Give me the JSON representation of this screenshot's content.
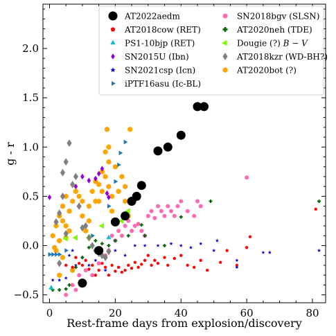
{
  "chart_data": {
    "type": "scatter",
    "xlabel": "Rest-frame days from explosion/discovery",
    "ylabel": "g - r",
    "xlim": [
      -2,
      84
    ],
    "ylim": [
      -0.58,
      2.45
    ],
    "xticks": [
      0,
      20,
      40,
      60,
      80
    ],
    "yticks": [
      -0.5,
      0.0,
      0.5,
      1.0,
      1.5,
      2.0
    ],
    "ytick_labels": [
      "−0.5",
      "0.0",
      "0.5",
      "1.0",
      "1.5",
      "2.0"
    ],
    "grid": false,
    "legend_position": "top-right",
    "series": [
      {
        "name": "AT2020bot (?)",
        "color": "#ffa500",
        "marker": "hexagon",
        "size": 8,
        "points": [
          [
            1,
            0.1
          ],
          [
            1.5,
            -0.02
          ],
          [
            2,
            0.2
          ],
          [
            2,
            -0.05
          ],
          [
            3,
            0.05
          ],
          [
            3,
            0.3
          ],
          [
            4,
            0.4
          ],
          [
            4,
            0.25
          ],
          [
            4,
            -0.12
          ],
          [
            5,
            0.2
          ],
          [
            5,
            0.5
          ],
          [
            5,
            0.08
          ],
          [
            6,
            0.35
          ],
          [
            6,
            0.15
          ],
          [
            7,
            0.45
          ],
          [
            8,
            0.55
          ],
          [
            9,
            0.5
          ],
          [
            10,
            0.3
          ],
          [
            10,
            0.45
          ],
          [
            11,
            0.15
          ],
          [
            12,
            0.4
          ],
          [
            12,
            0.25
          ],
          [
            13,
            0.55
          ],
          [
            14,
            0.45
          ],
          [
            14,
            0.65
          ],
          [
            15,
            0.62
          ],
          [
            15,
            0.45
          ],
          [
            16,
            0.55
          ],
          [
            16,
            0.75
          ],
          [
            17,
            0.7
          ],
          [
            17,
            0.95
          ],
          [
            17.5,
            1.18
          ],
          [
            18,
            1.0
          ],
          [
            18,
            0.85
          ],
          [
            18,
            0.6
          ],
          [
            19,
            0.5
          ],
          [
            19,
            0.35
          ],
          [
            20,
            0.8
          ],
          [
            21,
            0.55
          ],
          [
            22,
            0.7
          ],
          [
            23,
            0.6
          ],
          [
            23,
            0.45
          ],
          [
            24,
            0.3
          ],
          [
            24.5,
            1.18
          ],
          [
            3,
            -0.3
          ],
          [
            7,
            -0.25
          ]
        ]
      },
      {
        "name": "AT2018cow (RET)",
        "color": "#ff0000",
        "marker": "pentagon",
        "size": 5,
        "points": [
          [
            5,
            -0.2
          ],
          [
            7,
            -0.22
          ],
          [
            8,
            -0.12
          ],
          [
            9,
            -0.18
          ],
          [
            10,
            -0.2
          ],
          [
            11,
            -0.15
          ],
          [
            12,
            -0.24
          ],
          [
            13,
            -0.2
          ],
          [
            14,
            -0.3
          ],
          [
            15,
            -0.25
          ],
          [
            16,
            -0.18
          ],
          [
            17,
            -0.22
          ],
          [
            18,
            -0.3
          ],
          [
            19,
            -0.2
          ],
          [
            20,
            -0.26
          ],
          [
            21,
            -0.22
          ],
          [
            22,
            -0.27
          ],
          [
            23,
            -0.25
          ],
          [
            24,
            -0.2
          ],
          [
            25,
            -0.23
          ],
          [
            26,
            -0.17
          ],
          [
            27,
            -0.22
          ],
          [
            28,
            -0.19
          ],
          [
            29,
            -0.15
          ],
          [
            30,
            -0.1
          ],
          [
            31,
            -0.2
          ],
          [
            32,
            -0.15
          ],
          [
            33,
            -0.18
          ],
          [
            35,
            -0.12
          ],
          [
            36,
            -0.2
          ],
          [
            38,
            -0.13
          ],
          [
            40,
            -0.1
          ],
          [
            42,
            -0.2
          ],
          [
            44,
            -0.22
          ],
          [
            46,
            -0.15
          ],
          [
            48,
            -0.25
          ],
          [
            52,
            -0.17
          ],
          [
            54,
            -0.05
          ],
          [
            57,
            -0.2
          ],
          [
            60,
            -0.02
          ],
          [
            61,
            0.09
          ],
          [
            81,
            0.37
          ]
        ]
      },
      {
        "name": "SN2018bgv (SLSN)",
        "color": "#ff69b4",
        "marker": "circle",
        "size": 6,
        "points": [
          [
            5,
            -0.5
          ],
          [
            7,
            -0.4
          ],
          [
            8,
            -0.45
          ],
          [
            9,
            -0.3
          ],
          [
            11,
            -0.25
          ],
          [
            13,
            -0.3
          ],
          [
            15,
            -0.18
          ],
          [
            17,
            -0.1
          ],
          [
            18,
            -0.05
          ],
          [
            19,
            0.1
          ],
          [
            20,
            0.05
          ],
          [
            21,
            0.15
          ],
          [
            22,
            0.1
          ],
          [
            23,
            0.2
          ],
          [
            24,
            0.25
          ],
          [
            25,
            0.15
          ],
          [
            26,
            0.2
          ],
          [
            27,
            0.22
          ],
          [
            28,
            0.15
          ],
          [
            29,
            0.1
          ],
          [
            30,
            0.3
          ],
          [
            31,
            0.35
          ],
          [
            32,
            0.28
          ],
          [
            33,
            0.4
          ],
          [
            34,
            0.35
          ],
          [
            35,
            0.3
          ],
          [
            36,
            0.4
          ],
          [
            37,
            0.35
          ],
          [
            38,
            0.3
          ],
          [
            39,
            0.4
          ],
          [
            40,
            0.45
          ],
          [
            42,
            0.35
          ],
          [
            44,
            0.3
          ],
          [
            45,
            0.45
          ],
          [
            46,
            0.4
          ],
          [
            60,
            0.69
          ]
        ]
      },
      {
        "name": "AT2022aedm",
        "color": "#000000",
        "marker": "circle",
        "size": 13,
        "points": [
          [
            10,
            -0.38
          ],
          [
            15,
            -0.05
          ],
          [
            20,
            0.24
          ],
          [
            23,
            0.3
          ],
          [
            25,
            0.45
          ],
          [
            26.5,
            0.5
          ],
          [
            28,
            0.61
          ],
          [
            33,
            0.96
          ],
          [
            36,
            1.0
          ],
          [
            40,
            1.12
          ],
          [
            45,
            1.41
          ],
          [
            47,
            1.41
          ]
        ]
      },
      {
        "name": "PS1-10bjp (RET)",
        "color": "#17becf",
        "marker": "triangle-up",
        "size": 8,
        "points": [
          [
            0.5,
            -0.43
          ],
          [
            18,
            0.08
          ]
        ]
      },
      {
        "name": "SN2015U (Ibn)",
        "color": "#9400d3",
        "marker": "diamond",
        "size": 7,
        "points": [
          [
            0,
            0.49
          ],
          [
            8,
            0.6
          ],
          [
            10,
            0.7
          ],
          [
            12,
            0.66
          ],
          [
            14,
            0.68
          ],
          [
            15,
            0.73
          ],
          [
            16,
            0.78
          ],
          [
            17.5,
            0.53
          ],
          [
            18,
            0.49
          ]
        ]
      },
      {
        "name": "SN2021csp (Icn)",
        "color": "#0000cd",
        "marker": "star",
        "size": 5,
        "points": [
          [
            1,
            -0.35
          ],
          [
            3,
            -0.35
          ],
          [
            5,
            -0.33
          ],
          [
            6,
            -0.1
          ],
          [
            7,
            -0.05
          ],
          [
            8,
            -0.2
          ],
          [
            10,
            -0.12
          ],
          [
            12,
            -0.2
          ],
          [
            14,
            -0.15
          ],
          [
            17,
            -0.25
          ],
          [
            20,
            -0.05
          ],
          [
            23,
            -0.1
          ],
          [
            26,
            0.0
          ],
          [
            29,
            0.0
          ],
          [
            33,
            0.0
          ],
          [
            37,
            0.02
          ],
          [
            40,
            0.0
          ],
          [
            43,
            -0.02
          ],
          [
            46,
            0.02
          ],
          [
            50,
            -0.05
          ],
          [
            51,
            0.05
          ],
          [
            57,
            -0.15
          ],
          [
            57,
            -0.22
          ],
          [
            65,
            -0.07
          ],
          [
            67,
            -0.07
          ],
          [
            82,
            -0.05
          ]
        ]
      },
      {
        "name": "iPTF16asu (Ic-BL)",
        "color": "#1f77b4",
        "marker": "triangle-right",
        "size": 7,
        "points": [
          [
            0,
            -0.09
          ],
          [
            1,
            -0.09
          ],
          [
            2,
            -0.09
          ],
          [
            3,
            -0.09
          ],
          [
            5,
            -0.05
          ],
          [
            13,
            0.1
          ],
          [
            18,
            0.4
          ],
          [
            20,
            0.65
          ],
          [
            21,
            0.82
          ],
          [
            21.5,
            0.94
          ],
          [
            23,
            1.05
          ]
        ]
      },
      {
        "name": "AT2020neh (TDE)",
        "color": "#006400",
        "marker": "plus",
        "size": 5,
        "points": [
          [
            1,
            -0.45
          ],
          [
            3,
            -0.45
          ],
          [
            5,
            -0.44
          ],
          [
            6,
            -0.4
          ],
          [
            8,
            -0.22
          ],
          [
            10,
            -0.12
          ],
          [
            12,
            -0.02
          ],
          [
            14,
            0.05
          ],
          [
            16,
            0.02
          ],
          [
            18,
            0.0
          ],
          [
            20,
            0.05
          ],
          [
            24,
            0.1
          ],
          [
            28,
            0.21
          ],
          [
            29,
            0.1
          ],
          [
            35,
            0.0
          ],
          [
            40,
            0.29
          ],
          [
            49,
            0.45
          ],
          [
            82,
            0.45
          ]
        ]
      },
      {
        "name": "Dougie (?) B − V",
        "label_main": "Dougie (?)",
        "label_math": "B − V",
        "color": "#7cfc00",
        "marker": "triangle-left",
        "size": 9,
        "points": [
          [
            5,
            0.07
          ],
          [
            8,
            0.08
          ],
          [
            12,
            0.08
          ],
          [
            16,
            0.2
          ],
          [
            22,
            0.25
          ],
          [
            24,
            0.35
          ]
        ]
      },
      {
        "name": "AT2018kzr (WD-BH?)",
        "color": "#808080",
        "marker": "diamond",
        "size": 9,
        "points": [
          [
            2,
            0.24
          ],
          [
            3,
            0.33
          ],
          [
            4,
            0.5
          ],
          [
            5,
            0.85
          ],
          [
            6,
            1.04
          ],
          [
            7,
            0.62
          ],
          [
            8,
            0.7
          ],
          [
            9,
            0.4
          ],
          [
            10,
            0.18
          ],
          [
            11,
            0.2
          ],
          [
            12,
            0.08
          ],
          [
            13,
            0.0
          ],
          [
            14,
            -0.05
          ],
          [
            15,
            -0.08
          ],
          [
            16,
            -0.1
          ],
          [
            17,
            -0.12
          ],
          [
            18,
            -0.06
          ],
          [
            4,
            0.74
          ],
          [
            3,
            -0.18
          ],
          [
            5,
            0.12
          ]
        ]
      }
    ],
    "legend_columns": [
      [
        "AT2022aedm",
        "AT2018cow (RET)",
        "PS1-10bjp (RET)",
        "SN2015U (Ibn)",
        "SN2021csp (Icn)",
        "iPTF16asu (Ic-BL)"
      ],
      [
        "SN2018bgv (SLSN)",
        "AT2020neh (TDE)",
        "Dougie (?) B − V",
        "AT2018kzr (WD-BH?)",
        "AT2020bot (?)"
      ]
    ]
  }
}
